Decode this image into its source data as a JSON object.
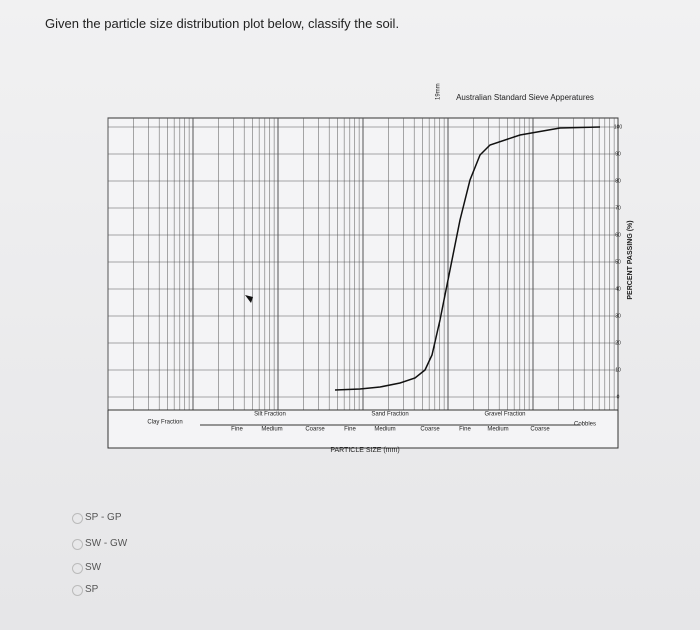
{
  "question": "Given the particle size distribution plot below, classify the soil.",
  "chart": {
    "header": "Australian Standard Sieve Apperatures",
    "y_axis_label": "PERCENT PASSING (%)",
    "x_axis_label": "PARTICLE SIZE (mm)",
    "sieve_label": "19mm",
    "yticks": [
      0,
      10,
      20,
      30,
      40,
      50,
      60,
      70,
      80,
      90,
      100
    ],
    "clay": "Clay Fraction",
    "silt": {
      "name": "Silt Fraction",
      "fine": "Fine",
      "medium": "Medium",
      "coarse": "Coarse"
    },
    "sand": {
      "name": "Sand Fraction",
      "fine": "Fine",
      "medium": "Medium",
      "coarse": "Coarse"
    },
    "gravel": {
      "name": "Gravel Fraction",
      "fine": "Fine",
      "medium": "Medium",
      "coarse": "Coarse"
    },
    "cobbles": "Cobbles"
  },
  "options": [
    "SP - GP",
    "SW - GW",
    "SW",
    "SP"
  ]
}
